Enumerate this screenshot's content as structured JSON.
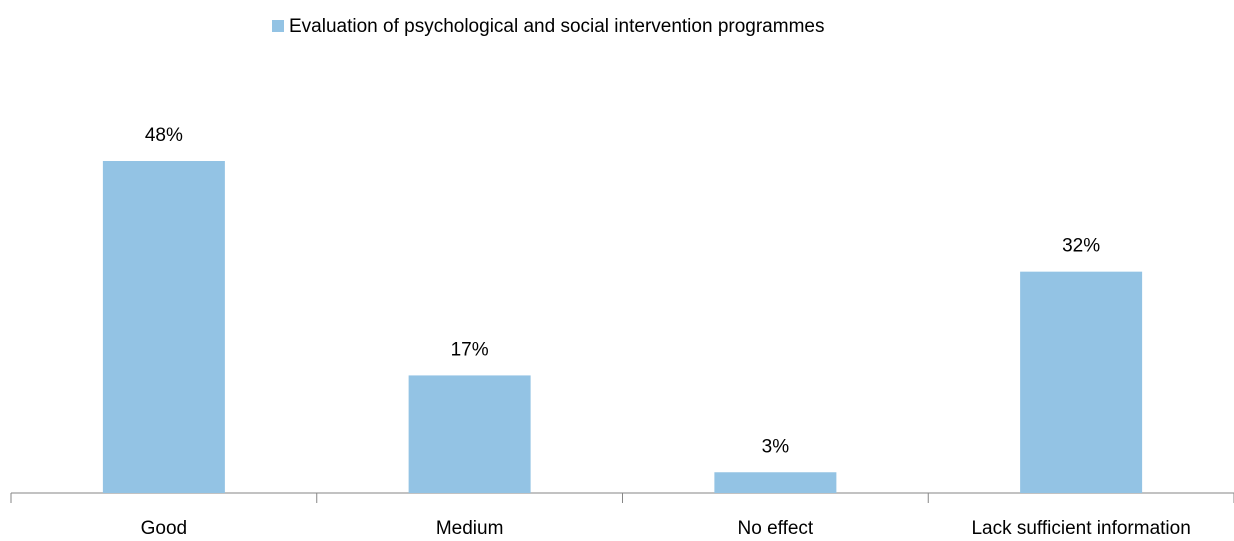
{
  "chart_data": {
    "type": "bar",
    "categories": [
      "Good",
      "Medium",
      "No effect",
      "Lack sufficient information"
    ],
    "series": [
      {
        "name": "Evaluation of psychological and social intervention programmes",
        "color": "#93c3e4",
        "values": [
          48,
          17,
          3,
          32
        ],
        "value_labels": [
          "48%",
          "17%",
          "3%",
          "32%"
        ]
      }
    ],
    "legend": "top"
  }
}
